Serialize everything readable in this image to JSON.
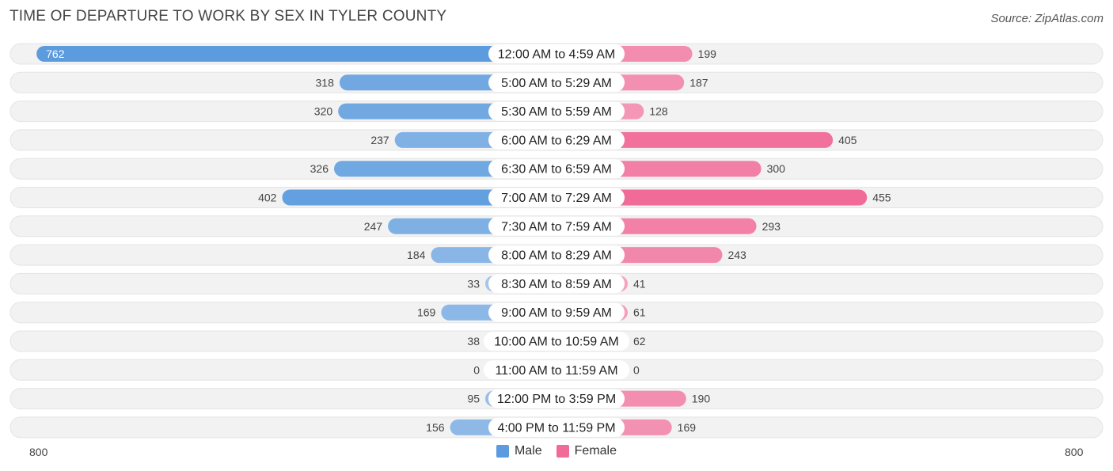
{
  "title": "TIME OF DEPARTURE TO WORK BY SEX IN TYLER COUNTY",
  "source": "Source: ZipAtlas.com",
  "colors": {
    "male": "#5b9bde",
    "male_light": "#a9c9ec",
    "female": "#f06b98",
    "female_light": "#f5a8c3",
    "row_bg": "#f2f2f2"
  },
  "legend": {
    "male_label": "Male",
    "female_label": "Female"
  },
  "axis": {
    "left_label": "800",
    "right_label": "800"
  },
  "chart_data": {
    "type": "bar",
    "orientation": "horizontal-diverging",
    "axis_max": 800,
    "categories": [
      "12:00 AM to 4:59 AM",
      "5:00 AM to 5:29 AM",
      "5:30 AM to 5:59 AM",
      "6:00 AM to 6:29 AM",
      "6:30 AM to 6:59 AM",
      "7:00 AM to 7:29 AM",
      "7:30 AM to 7:59 AM",
      "8:00 AM to 8:29 AM",
      "8:30 AM to 8:59 AM",
      "9:00 AM to 9:59 AM",
      "10:00 AM to 10:59 AM",
      "11:00 AM to 11:59 AM",
      "12:00 PM to 3:59 PM",
      "4:00 PM to 11:59 PM"
    ],
    "series": [
      {
        "name": "Male",
        "values": [
          762,
          318,
          320,
          237,
          326,
          402,
          247,
          184,
          33,
          169,
          38,
          0,
          95,
          156
        ]
      },
      {
        "name": "Female",
        "values": [
          199,
          187,
          128,
          405,
          300,
          455,
          293,
          243,
          41,
          61,
          62,
          0,
          190,
          169
        ]
      }
    ],
    "legend_position": "bottom-center"
  }
}
